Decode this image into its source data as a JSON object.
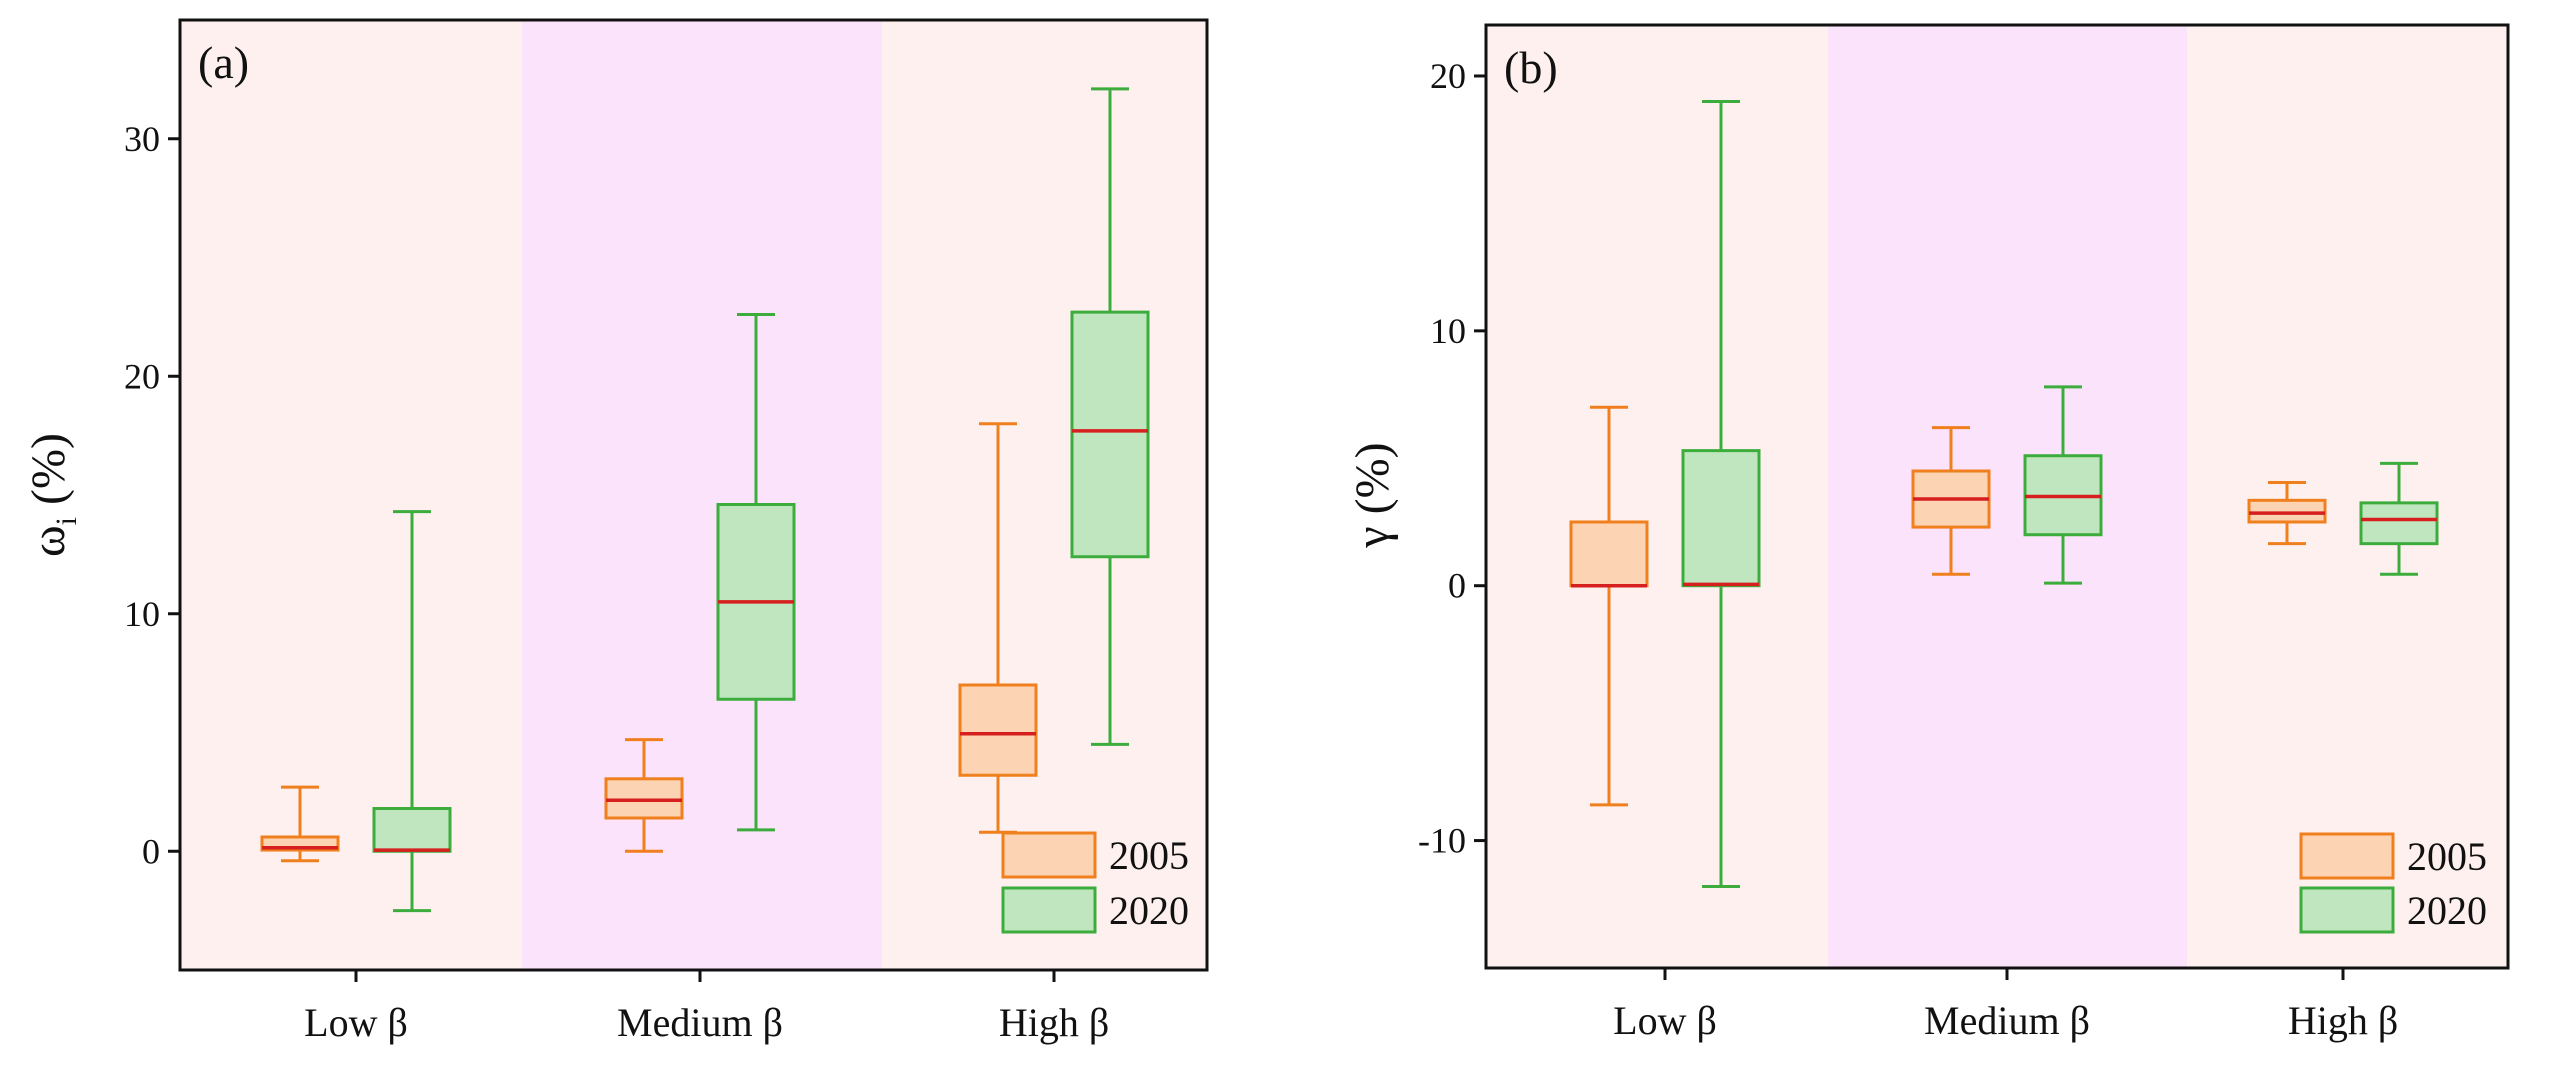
{
  "chart_data": [
    {
      "type": "box",
      "panel_label": "(a)",
      "ylabel": "ω_i (%)",
      "ylabel_main": "ω",
      "ylabel_sub": "i",
      "ylabel_unit": "(%)",
      "ylim": [
        -5,
        35
      ],
      "yticks": [
        0,
        10,
        20,
        30
      ],
      "categories": [
        "Low β",
        "Medium β",
        "High β"
      ],
      "category_backgrounds": [
        "#fdf0ee",
        "#fbe3fb",
        "#fdf0ee"
      ],
      "series": [
        {
          "name": "2005",
          "color": "#f07f1e",
          "fill": "#fcd3b3",
          "boxes": [
            {
              "min": -0.4,
              "q1": 0.05,
              "median": 0.15,
              "q3": 0.6,
              "max": 2.7
            },
            {
              "min": 0.0,
              "q1": 1.4,
              "median": 2.15,
              "q3": 3.05,
              "max": 4.7
            },
            {
              "min": 0.8,
              "q1": 3.2,
              "median": 4.95,
              "q3": 7.0,
              "max": 18.0
            }
          ]
        },
        {
          "name": "2020",
          "color": "#3cad3c",
          "fill": "#c0e6c0",
          "boxes": [
            {
              "min": -2.5,
              "q1": 0.0,
              "median": 0.05,
              "q3": 1.8,
              "max": 14.3
            },
            {
              "min": 0.9,
              "q1": 6.4,
              "median": 10.5,
              "q3": 14.6,
              "max": 22.6
            },
            {
              "min": 4.5,
              "q1": 12.4,
              "median": 17.7,
              "q3": 22.7,
              "max": 32.1
            }
          ]
        }
      ],
      "median_color": "#d61f1f",
      "legend": [
        "2005",
        "2020"
      ],
      "legend_position": "bottom-right"
    },
    {
      "type": "box",
      "panel_label": "(b)",
      "ylabel": "γ (%)",
      "ylabel_main": "γ",
      "ylabel_sub": "",
      "ylabel_unit": "(%)",
      "ylim": [
        -15,
        22
      ],
      "yticks": [
        -10,
        0,
        10,
        20
      ],
      "categories": [
        "Low β",
        "Medium β",
        "High β"
      ],
      "category_backgrounds": [
        "#fdf0ee",
        "#fbe3fb",
        "#fdf0ee"
      ],
      "series": [
        {
          "name": "2005",
          "color": "#f07f1e",
          "fill": "#fcd3b3",
          "boxes": [
            {
              "min": -8.6,
              "q1": 0.0,
              "median": 0.0,
              "q3": 2.5,
              "max": 7.0
            },
            {
              "min": 0.45,
              "q1": 2.3,
              "median": 3.4,
              "q3": 4.5,
              "max": 6.2
            },
            {
              "min": 1.65,
              "q1": 2.5,
              "median": 2.85,
              "q3": 3.35,
              "max": 4.05
            }
          ]
        },
        {
          "name": "2020",
          "color": "#3cad3c",
          "fill": "#c0e6c0",
          "boxes": [
            {
              "min": -11.8,
              "q1": 0.0,
              "median": 0.05,
              "q3": 5.3,
              "max": 19.0
            },
            {
              "min": 0.1,
              "q1": 2.0,
              "median": 3.5,
              "q3": 5.1,
              "max": 7.8
            },
            {
              "min": 0.45,
              "q1": 1.65,
              "median": 2.6,
              "q3": 3.25,
              "max": 4.8
            }
          ]
        }
      ],
      "median_color": "#d61f1f",
      "legend": [
        "2005",
        "2020"
      ],
      "legend_position": "bottom-right"
    }
  ]
}
